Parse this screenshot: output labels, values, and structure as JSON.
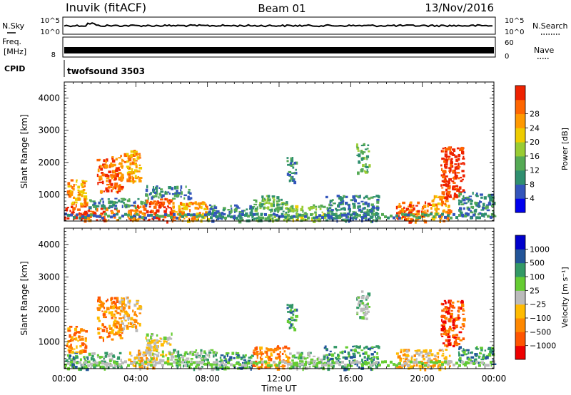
{
  "header": {
    "station": "Inuvik (fitACF)",
    "beam": "Beam 01",
    "date": "13/Nov/2016"
  },
  "strips": {
    "nsky_label": "N.Sky",
    "nsearch_label": "N.Search",
    "noise_ticks": [
      "10^5",
      "10^0"
    ],
    "freq_label_line1": "Freq.",
    "freq_label_line2": "[MHz]",
    "freq_ticks": [
      "8"
    ],
    "nave_label": "Nave",
    "nave_ticks": [
      "60",
      "0"
    ],
    "cpid_label": "CPID",
    "cpid_value": "twofsound 3503"
  },
  "colors": {
    "power": [
      "#0000ee",
      "#3355bb",
      "#2f8f6f",
      "#55aa55",
      "#99cc33",
      "#eecc00",
      "#ff9900",
      "#ff6600",
      "#ee2200"
    ],
    "velocity": [
      "#ee0000",
      "#ff5500",
      "#ff8800",
      "#ffbb00",
      "#bbbbbb",
      "#66cc33",
      "#339966",
      "#225599",
      "#0000cc"
    ]
  },
  "chart_data": [
    {
      "type": "heatmap",
      "panel": "power",
      "ylabel": "Slant Range [km]",
      "yticks": [
        "1000",
        "2000",
        "3000",
        "4000"
      ],
      "ylim": [
        180,
        4500
      ],
      "xlim": [
        0,
        24
      ],
      "colorbar": {
        "label": "Power [dB]",
        "ticks": [
          "4",
          "8",
          "12",
          "16",
          "20",
          "24",
          "28"
        ]
      },
      "regions": [
        {
          "t0": 0.0,
          "t1": 1.2,
          "r0": 200,
          "r1": 700,
          "c": 8
        },
        {
          "t0": 0.1,
          "t1": 1.2,
          "r0": 700,
          "r1": 1500,
          "c": 6
        },
        {
          "t0": 1.2,
          "t1": 3.0,
          "r0": 200,
          "r1": 600,
          "c": 7
        },
        {
          "t0": 1.2,
          "t1": 4.5,
          "r0": 600,
          "r1": 900,
          "c": 2
        },
        {
          "t0": 1.8,
          "t1": 3.2,
          "r0": 1100,
          "r1": 2200,
          "c": 7
        },
        {
          "t0": 3.0,
          "t1": 4.2,
          "r0": 1400,
          "r1": 2400,
          "c": 6
        },
        {
          "t0": 3.5,
          "t1": 4.5,
          "r0": 200,
          "r1": 700,
          "c": 7
        },
        {
          "t0": 4.5,
          "t1": 6.0,
          "r0": 200,
          "r1": 900,
          "c": 8
        },
        {
          "t0": 4.5,
          "t1": 7.0,
          "r0": 900,
          "r1": 1300,
          "c": 2
        },
        {
          "t0": 6.0,
          "t1": 8.0,
          "r0": 200,
          "r1": 800,
          "c": 6
        },
        {
          "t0": 8.0,
          "t1": 10.5,
          "r0": 200,
          "r1": 700,
          "c": 2
        },
        {
          "t0": 10.5,
          "t1": 12.5,
          "r0": 200,
          "r1": 1000,
          "c": 3
        },
        {
          "t0": 12.5,
          "t1": 14.5,
          "r0": 200,
          "r1": 700,
          "c": 4
        },
        {
          "t0": 12.4,
          "t1": 12.9,
          "r0": 1400,
          "r1": 2200,
          "c": 2
        },
        {
          "t0": 14.5,
          "t1": 17.5,
          "r0": 200,
          "r1": 1000,
          "c": 2
        },
        {
          "t0": 16.3,
          "t1": 17.0,
          "r0": 1700,
          "r1": 2600,
          "c": 3
        },
        {
          "t0": 18.5,
          "t1": 20.5,
          "r0": 200,
          "r1": 800,
          "c": 7
        },
        {
          "t0": 20.5,
          "t1": 21.5,
          "r0": 200,
          "r1": 1000,
          "c": 6
        },
        {
          "t0": 21.0,
          "t1": 22.3,
          "r0": 900,
          "r1": 2500,
          "c": 8
        },
        {
          "t0": 22.0,
          "t1": 24.0,
          "r0": 300,
          "r1": 1100,
          "c": 2
        }
      ]
    },
    {
      "type": "heatmap",
      "panel": "velocity",
      "ylabel": "Slant Range [km]",
      "yticks": [
        "1000",
        "2000",
        "3000",
        "4000"
      ],
      "ylim": [
        180,
        4500
      ],
      "xlim": [
        0,
        24
      ],
      "xticks": [
        "00:00",
        "04:00",
        "08:00",
        "12:00",
        "16:00",
        "20:00",
        "00:00"
      ],
      "xlabel": "Time UT",
      "colorbar": {
        "label": "Velocity [m s⁻¹]",
        "ticks": [
          "-1000",
          "-500",
          "-100",
          "-25",
          "25",
          "100",
          "500",
          "1000"
        ]
      },
      "regions": [
        {
          "t0": 0.0,
          "t1": 1.5,
          "r0": 200,
          "r1": 700,
          "c": 6
        },
        {
          "t0": 0.1,
          "t1": 1.2,
          "r0": 700,
          "r1": 1500,
          "c": 2
        },
        {
          "t0": 1.5,
          "t1": 3.2,
          "r0": 200,
          "r1": 700,
          "c": 5
        },
        {
          "t0": 1.8,
          "t1": 3.2,
          "r0": 1100,
          "r1": 2400,
          "c": 2
        },
        {
          "t0": 3.0,
          "t1": 4.2,
          "r0": 1400,
          "r1": 2400,
          "c": 3
        },
        {
          "t0": 3.5,
          "t1": 5.0,
          "r0": 200,
          "r1": 800,
          "c": 3
        },
        {
          "t0": 4.5,
          "t1": 6.0,
          "r0": 400,
          "r1": 1300,
          "c": 4
        },
        {
          "t0": 6.0,
          "t1": 8.5,
          "r0": 200,
          "r1": 800,
          "c": 5
        },
        {
          "t0": 8.5,
          "t1": 10.5,
          "r0": 200,
          "r1": 700,
          "c": 6
        },
        {
          "t0": 10.5,
          "t1": 12.5,
          "r0": 200,
          "r1": 900,
          "c": 2
        },
        {
          "t0": 12.4,
          "t1": 12.9,
          "r0": 1400,
          "r1": 2200,
          "c": 6
        },
        {
          "t0": 12.5,
          "t1": 14.5,
          "r0": 200,
          "r1": 700,
          "c": 5
        },
        {
          "t0": 14.5,
          "t1": 17.5,
          "r0": 200,
          "r1": 900,
          "c": 6
        },
        {
          "t0": 16.3,
          "t1": 17.0,
          "r0": 1700,
          "r1": 2600,
          "c": 5
        },
        {
          "t0": 18.5,
          "t1": 21.5,
          "r0": 200,
          "r1": 800,
          "c": 3
        },
        {
          "t0": 21.0,
          "t1": 22.3,
          "r0": 900,
          "r1": 2300,
          "c": 1
        },
        {
          "t0": 22.0,
          "t1": 24.0,
          "r0": 300,
          "r1": 900,
          "c": 6
        }
      ]
    }
  ]
}
